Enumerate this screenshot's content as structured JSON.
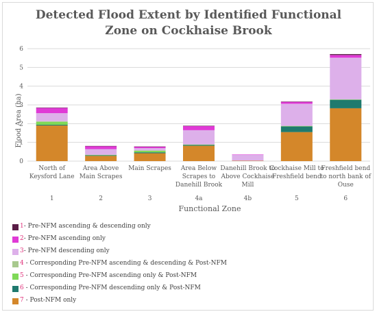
{
  "chart_data": {
    "type": "bar",
    "stacked": true,
    "title_line1": "Detected Flood Extent by Identified Functional",
    "title_line2": "Zone on Cockhaise Brook",
    "xlabel": "Functional Zone",
    "ylabel": "Flood Area (ha)",
    "ylim": [
      0,
      6
    ],
    "yticks": [
      "0",
      "1",
      "2",
      "3",
      "4",
      "5",
      "6"
    ],
    "grid": true,
    "legend_position": "bottom-left",
    "categories": [
      {
        "line1": "North of",
        "line2": "Keysford Lane",
        "zone": "1"
      },
      {
        "line1": "Area Above",
        "line2": "Main Scrapes",
        "zone": "2"
      },
      {
        "line1": "Main Scrapes",
        "line2": "",
        "zone": "3"
      },
      {
        "line1": "Area Below",
        "line2": "Scrapes to",
        "line3": "Danehill Brook",
        "zone": "4a"
      },
      {
        "line1": "Danehill Brook to",
        "line2": "Above Cockhaise",
        "line3": "Mill",
        "zone": "4b"
      },
      {
        "line1": "Cockhaise Mill to",
        "line2": "Freshfield bend",
        "zone": "5"
      },
      {
        "line1": "Freshfield bend",
        "line2": "to north bank of",
        "line3": "Ouse",
        "zone": "6"
      }
    ],
    "series": [
      {
        "num": "7",
        "label": " - Post-NFM only",
        "color": "#d4872a",
        "values": [
          1.9,
          0.28,
          0.42,
          0.82,
          0.02,
          1.55,
          2.82
        ]
      },
      {
        "num": "6",
        "label": " - Corresponding Pre-NFM descending only & Post-NFM",
        "color": "#1f7a6e",
        "values": [
          0.04,
          0.03,
          0.05,
          0.04,
          0.0,
          0.3,
          0.45
        ]
      },
      {
        "num": "5",
        "label": " - Corresponding Pre-NFM ascending only & Post-NFM",
        "color": "#7ed957",
        "values": [
          0.15,
          0.02,
          0.08,
          0.02,
          0.0,
          0.02,
          0.02
        ]
      },
      {
        "num": "4",
        "label": " - Corresponding Pre-NFM ascending & descending & Post-NFM",
        "color": "#a8c98e",
        "values": [
          0.04,
          0.01,
          0.02,
          0.01,
          0.0,
          0.01,
          0.01
        ]
      },
      {
        "num": "3",
        "label": "- Pre-NFM descending only",
        "color": "#ddb0ea",
        "values": [
          0.43,
          0.3,
          0.12,
          0.76,
          0.32,
          1.18,
          2.22
        ]
      },
      {
        "num": "2",
        "label": "- Pre-NFM ascending only",
        "color": "#e03ad6",
        "values": [
          0.28,
          0.16,
          0.08,
          0.22,
          0.02,
          0.1,
          0.14
        ]
      },
      {
        "num": "1",
        "label": "- Pre-NFM ascending & descending only",
        "color": "#5a1d46",
        "values": [
          0.02,
          0.01,
          0.01,
          0.02,
          0.0,
          0.02,
          0.05
        ]
      }
    ]
  },
  "legend_order": [
    "1",
    "2",
    "3",
    "4",
    "5",
    "6",
    "7"
  ],
  "colors": {
    "axis_text": "#595959",
    "grid": "#d9d9d9",
    "title": "#595959",
    "legend_number": "#e0307a"
  }
}
